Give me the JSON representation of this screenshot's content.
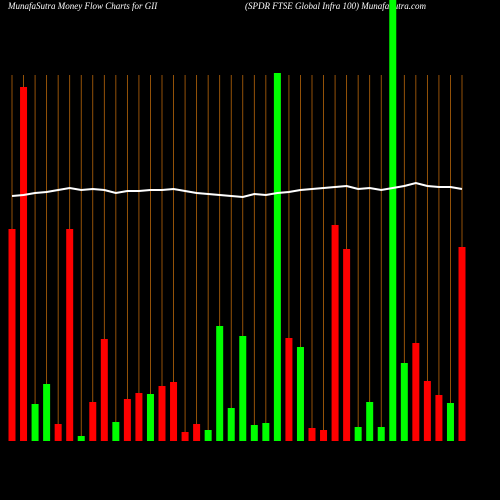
{
  "chart_data": {
    "type": "bar",
    "title": "MunafaSutra  Money Flow  Charts for GII",
    "subtitle": "(SPDR FTSE Global Infra  100) MunafaSutra.com",
    "ylim": [
      0,
      441
    ],
    "grid_color": "#b8660b",
    "categories": [
      null,
      null,
      null,
      null,
      null,
      null,
      null,
      null,
      null,
      null,
      null,
      null,
      null,
      null,
      null,
      null,
      null,
      null,
      null,
      null,
      null,
      null,
      null,
      null,
      null,
      null,
      null,
      null,
      null,
      null,
      null,
      null,
      null,
      null,
      null,
      null,
      null,
      null,
      null,
      null
    ],
    "series": [
      {
        "name": "money-flow",
        "colors": [
          "#ff0000",
          "#ff0000",
          "#00ff00",
          "#00ff00",
          "#ff0000",
          "#ff0000",
          "#00ff00",
          "#ff0000",
          "#ff0000",
          "#00ff00",
          "#ff0000",
          "#ff0000",
          "#00ff00",
          "#ff0000",
          "#ff0000",
          "#ff0000",
          "#ff0000",
          "#00ff00",
          "#00ff00",
          "#00ff00",
          "#00ff00",
          "#00ff00",
          "#00ff00",
          "#00ff00",
          "#ff0000",
          "#00ff00",
          "#ff0000",
          "#ff0000",
          "#ff0000",
          "#ff0000",
          "#00ff00",
          "#00ff00",
          "#00ff00",
          "#00ff00",
          "#00ff00",
          "#ff0000",
          "#ff0000",
          "#ff0000",
          "#00ff00",
          "#ff0000"
        ],
        "values": [
          212,
          354,
          37,
          57,
          17,
          212,
          5,
          39,
          102,
          19,
          42,
          48,
          47,
          55,
          59,
          9,
          17,
          11,
          115,
          33,
          105,
          16,
          18,
          368,
          103,
          94,
          13,
          11,
          216,
          192,
          14,
          39,
          14,
          441,
          78,
          98,
          60,
          46,
          38,
          194
        ]
      },
      {
        "name": "price",
        "color": "#ffffff",
        "line": true,
        "values": [
          245,
          246,
          248,
          249,
          251,
          253,
          251,
          252,
          251,
          248,
          250,
          250,
          251,
          251,
          252,
          250,
          248,
          247,
          246,
          245,
          244,
          247,
          246,
          248,
          249,
          251,
          252,
          253,
          254,
          255,
          252,
          253,
          251,
          253,
          255,
          258,
          255,
          254,
          254,
          252
        ]
      }
    ]
  }
}
